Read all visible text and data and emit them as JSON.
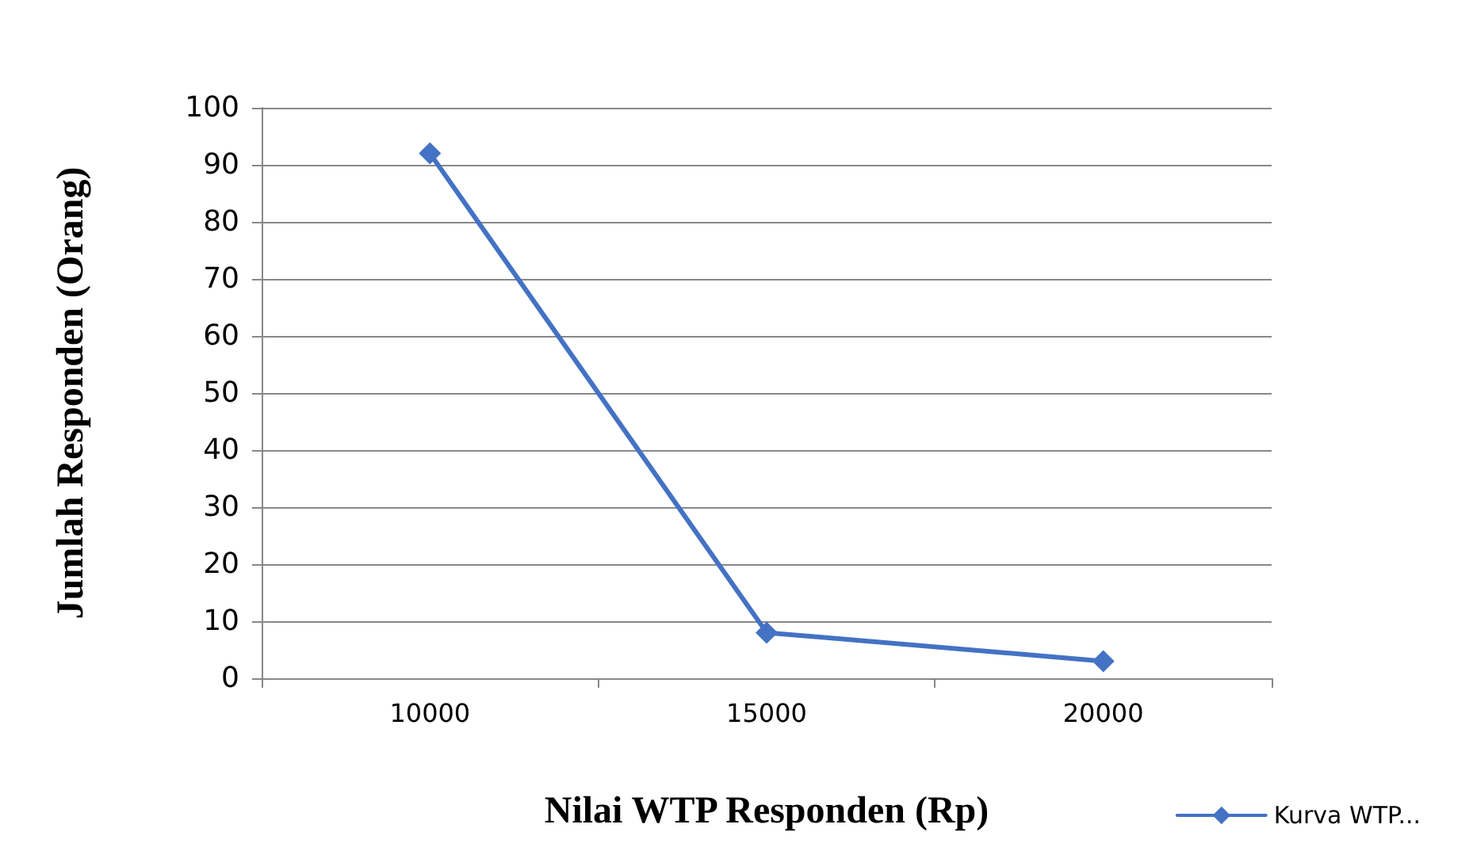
{
  "chart_data": {
    "type": "line",
    "xlabel": "Nilai WTP Responden (Rp)",
    "ylabel": "Jumlah Responden (Orang)",
    "categories": [
      "10000",
      "15000",
      "20000"
    ],
    "series": [
      {
        "name": "Kurva WTP...",
        "color": "#4472c4",
        "values": [
          92,
          8,
          3
        ]
      }
    ],
    "ylim": [
      0,
      100
    ],
    "yticks": [
      0,
      10,
      20,
      30,
      40,
      50,
      60,
      70,
      80,
      90,
      100
    ],
    "grid": "y",
    "legend": "bottom right",
    "marker": "diamond",
    "line_style": "solid"
  }
}
